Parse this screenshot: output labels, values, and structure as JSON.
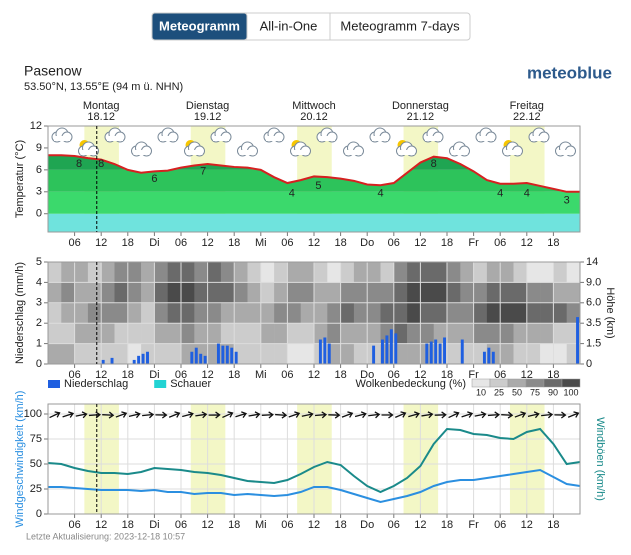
{
  "tabs": [
    {
      "label": "Meteogramm",
      "active": true
    },
    {
      "label": "All-in-One",
      "active": false
    },
    {
      "label": "Meteogramm 7-days",
      "active": false
    }
  ],
  "location": {
    "name": "Pasenow",
    "coordinates": "53.50°N, 13.55°E (94 m ü. NHN)"
  },
  "logo": "meteoblue",
  "days": [
    {
      "name": "Montag",
      "date": "18.12",
      "hour": 12
    },
    {
      "name": "Dienstag",
      "date": "19.12",
      "hour": 36
    },
    {
      "name": "Mittwoch",
      "date": "20.12",
      "hour": 60
    },
    {
      "name": "Donnerstag",
      "date": "21.12",
      "hour": 84
    },
    {
      "name": "Freitag",
      "date": "22.12",
      "hour": 108
    }
  ],
  "now": 11,
  "daylight": [
    8.2,
    16
  ],
  "chart_data": [
    {
      "type": "area",
      "y_label": "Temperatur (°C)",
      "color": "#d62020",
      "band_colors": [
        "#6fe3dd",
        "#3bd96c",
        "#2dc35b",
        "#1fa552",
        "#17914a"
      ],
      "x": [
        0,
        3,
        6,
        9,
        12,
        15,
        18,
        21,
        24,
        27,
        30,
        33,
        36,
        39,
        42,
        45,
        48,
        51,
        54,
        57,
        60,
        63,
        66,
        69,
        72,
        75,
        78,
        81,
        84,
        87,
        90,
        93,
        96,
        99,
        102,
        105,
        108,
        111,
        114,
        117,
        120
      ],
      "values": [
        8.0,
        8.0,
        7.9,
        7.6,
        7.4,
        6.8,
        6.0,
        5.6,
        5.8,
        5.9,
        6.3,
        6.6,
        6.8,
        6.6,
        6.4,
        6.3,
        6.0,
        5.0,
        4.2,
        4.6,
        5.1,
        5.0,
        4.8,
        4.5,
        4.0,
        3.9,
        4.2,
        5.6,
        7.0,
        7.8,
        7.6,
        6.8,
        5.8,
        4.6,
        4.1,
        4.1,
        4.2,
        3.8,
        3.4,
        3.0,
        3.0
      ],
      "point_labels": [
        {
          "x": 7,
          "value": 8
        },
        {
          "x": 12,
          "value": 8
        },
        {
          "x": 24,
          "value": 6
        },
        {
          "x": 35,
          "value": 7
        },
        {
          "x": 55,
          "value": 4
        },
        {
          "x": 61,
          "value": 5
        },
        {
          "x": 75,
          "value": 4
        },
        {
          "x": 87,
          "value": 8
        },
        {
          "x": 102,
          "value": 4
        },
        {
          "x": 108,
          "value": 4
        },
        {
          "x": 117,
          "value": 3
        }
      ],
      "xlim": [
        0,
        120
      ],
      "xticks": [
        {
          "value": 6,
          "label": "06"
        },
        12,
        18,
        {
          "value": 24,
          "label": "Di"
        },
        {
          "value": 30,
          "label": "06"
        },
        {
          "value": 36,
          "label": "12"
        },
        {
          "value": 42,
          "label": "18"
        },
        {
          "value": 48,
          "label": "Mi"
        },
        {
          "value": 54,
          "label": "06"
        },
        {
          "value": 60,
          "label": "12"
        },
        {
          "value": 66,
          "label": "18"
        },
        {
          "value": 72,
          "label": "Do"
        },
        {
          "value": 78,
          "label": "06"
        },
        {
          "value": 84,
          "label": "12"
        },
        {
          "value": 90,
          "label": "18"
        },
        {
          "value": 96,
          "label": "Fr"
        },
        {
          "value": 102,
          "label": "06"
        },
        {
          "value": 108,
          "label": "12"
        },
        {
          "value": 114,
          "label": "18"
        }
      ],
      "ylim": [
        -2.5,
        12
      ],
      "yticks": [
        0,
        3,
        6,
        9,
        12
      ],
      "grid": false
    },
    {
      "type": "bar",
      "y_label": "Niederschlag (mm/h)",
      "y2_label": "Höhe (km)",
      "series": [
        {
          "name": "Niederschlag",
          "color": "#1f5fe0",
          "x": [
            12,
            14,
            19,
            20,
            21,
            22,
            32,
            33,
            34,
            35,
            38,
            39,
            40,
            41,
            42,
            61,
            62,
            63,
            73,
            75,
            76,
            77,
            78,
            85,
            86,
            87,
            88,
            89,
            93,
            98,
            99,
            100,
            119
          ],
          "values": [
            0.2,
            0.3,
            0.2,
            0.4,
            0.5,
            0.6,
            0.6,
            0.8,
            0.5,
            0.4,
            1.0,
            0.9,
            0.9,
            0.8,
            0.6,
            1.2,
            1.3,
            1.0,
            0.9,
            1.2,
            1.4,
            1.7,
            1.5,
            1.0,
            1.1,
            1.2,
            1.0,
            1.3,
            1.2,
            0.6,
            0.8,
            0.6,
            2.3
          ]
        },
        {
          "name": "Schauer",
          "color": "#22d3d3",
          "x": [],
          "values": []
        }
      ],
      "cloud_cover": {
        "label": "Wolkenbedeckung (%)",
        "step": 3,
        "x": [
          0,
          3,
          6,
          9,
          12,
          15,
          18,
          21,
          24,
          27,
          30,
          33,
          36,
          39,
          42,
          45,
          48,
          51,
          54,
          57,
          60,
          63,
          66,
          69,
          72,
          75,
          78,
          81,
          84,
          87,
          90,
          93,
          96,
          99,
          102,
          105,
          108,
          111,
          114,
          117
        ],
        "layers": [
          [
            50,
            50,
            25,
            25,
            25,
            25,
            10,
            25,
            25,
            25,
            50,
            50,
            50,
            50,
            25,
            25,
            25,
            25,
            10,
            10,
            25,
            50,
            50,
            25,
            25,
            50,
            50,
            50,
            50,
            25,
            25,
            25,
            25,
            50,
            50,
            25,
            25,
            10,
            10,
            25
          ],
          [
            25,
            25,
            50,
            50,
            50,
            25,
            25,
            25,
            50,
            50,
            75,
            50,
            50,
            25,
            25,
            25,
            50,
            50,
            25,
            25,
            50,
            75,
            50,
            50,
            50,
            75,
            90,
            75,
            75,
            50,
            50,
            50,
            75,
            75,
            75,
            50,
            50,
            50,
            25,
            25
          ],
          [
            25,
            50,
            50,
            75,
            75,
            75,
            50,
            25,
            75,
            90,
            90,
            75,
            75,
            50,
            50,
            50,
            50,
            75,
            75,
            50,
            50,
            75,
            90,
            75,
            75,
            90,
            90,
            100,
            90,
            90,
            75,
            75,
            90,
            100,
            100,
            100,
            90,
            90,
            90,
            75
          ],
          [
            50,
            75,
            50,
            50,
            75,
            90,
            75,
            50,
            90,
            100,
            100,
            90,
            90,
            90,
            75,
            50,
            25,
            50,
            75,
            75,
            50,
            50,
            75,
            75,
            75,
            75,
            90,
            100,
            100,
            100,
            90,
            75,
            75,
            90,
            90,
            90,
            75,
            75,
            50,
            50
          ],
          [
            25,
            50,
            50,
            25,
            50,
            75,
            75,
            50,
            75,
            90,
            90,
            75,
            90,
            75,
            50,
            25,
            10,
            25,
            50,
            50,
            25,
            10,
            25,
            50,
            50,
            25,
            75,
            90,
            90,
            90,
            75,
            50,
            25,
            50,
            50,
            25,
            10,
            10,
            25,
            10
          ]
        ],
        "levels": [
          10,
          25,
          50,
          75,
          90,
          100
        ],
        "level_colors": [
          "#e6e6e6",
          "#cccccc",
          "#aaaaaa",
          "#8a8a8a",
          "#6a6a6a",
          "#4a4a4a"
        ]
      },
      "xlim": [
        0,
        120
      ],
      "xticks": [
        {
          "value": 6,
          "label": "06"
        },
        12,
        18,
        {
          "value": 24,
          "label": "Di"
        },
        {
          "value": 30,
          "label": "06"
        },
        {
          "value": 36,
          "label": "12"
        },
        {
          "value": 42,
          "label": "18"
        },
        {
          "value": 48,
          "label": "Mi"
        },
        {
          "value": 54,
          "label": "06"
        },
        {
          "value": 60,
          "label": "12"
        },
        {
          "value": 66,
          "label": "18"
        },
        {
          "value": 72,
          "label": "Do"
        },
        {
          "value": 78,
          "label": "06"
        },
        {
          "value": 84,
          "label": "12"
        },
        {
          "value": 90,
          "label": "18"
        },
        {
          "value": 96,
          "label": "Fr"
        },
        {
          "value": 102,
          "label": "06"
        },
        {
          "value": 108,
          "label": "12"
        },
        {
          "value": 114,
          "label": "18"
        }
      ],
      "ylim": [
        0,
        5
      ],
      "yticks": [
        0,
        1,
        2,
        3,
        4,
        5
      ],
      "y2lim": [
        0,
        14
      ],
      "y2ticks": [
        0,
        1.5,
        3.5,
        {
          "value": 6,
          "label": "6.0"
        },
        {
          "value": 9,
          "label": "9.0"
        },
        14
      ],
      "y2scale": "piecewise",
      "grid": true
    },
    {
      "type": "line",
      "y_label": "Windgeschwindigkeit (km/h)",
      "y2_label": "Windböen (km/h)",
      "x": [
        0,
        3,
        6,
        9,
        12,
        15,
        18,
        21,
        24,
        27,
        30,
        33,
        36,
        39,
        42,
        45,
        48,
        51,
        54,
        57,
        60,
        63,
        66,
        69,
        72,
        75,
        78,
        81,
        84,
        87,
        90,
        93,
        96,
        99,
        102,
        105,
        108,
        111,
        114,
        117,
        120
      ],
      "series": [
        {
          "color": "#2b8fe0",
          "values": [
            27,
            27,
            26,
            25,
            24,
            24,
            24,
            23,
            24,
            22,
            22,
            20,
            21,
            21,
            19,
            20,
            19,
            18,
            19,
            22,
            27,
            27,
            24,
            20,
            16,
            12,
            15,
            18,
            22,
            28,
            32,
            34,
            34,
            36,
            38,
            40,
            42,
            44,
            37,
            30,
            28
          ]
        },
        {
          "color": "#1a8a8a",
          "values": [
            51,
            50,
            46,
            43,
            41,
            41,
            40,
            42,
            46,
            45,
            44,
            42,
            41,
            39,
            36,
            33,
            32,
            31,
            34,
            40,
            47,
            52,
            49,
            38,
            28,
            22,
            28,
            36,
            48,
            70,
            85,
            84,
            80,
            79,
            76,
            75,
            82,
            85,
            70,
            50,
            52
          ]
        }
      ],
      "xlim": [
        0,
        120
      ],
      "xticks": [
        {
          "value": 6,
          "label": "06"
        },
        12,
        18,
        {
          "value": 24,
          "label": "Di"
        },
        {
          "value": 30,
          "label": "06"
        },
        {
          "value": 36,
          "label": "12"
        },
        {
          "value": 42,
          "label": "18"
        },
        {
          "value": 48,
          "label": "Mi"
        },
        {
          "value": 54,
          "label": "06"
        },
        {
          "value": 60,
          "label": "12"
        },
        {
          "value": 66,
          "label": "18"
        },
        {
          "value": 72,
          "label": "Do"
        },
        {
          "value": 78,
          "label": "06"
        },
        {
          "value": 84,
          "label": "12"
        },
        {
          "value": 90,
          "label": "18"
        },
        {
          "value": 96,
          "label": "Fr"
        },
        {
          "value": 102,
          "label": "06"
        },
        {
          "value": 108,
          "label": "12"
        },
        {
          "value": 114,
          "label": "18"
        }
      ],
      "ylim": [
        0,
        110
      ],
      "yticks": [
        0,
        25,
        50,
        75,
        100
      ],
      "grid": true
    }
  ],
  "footer": "Letzte Aktualisierung: 2023-12-18 10:57"
}
